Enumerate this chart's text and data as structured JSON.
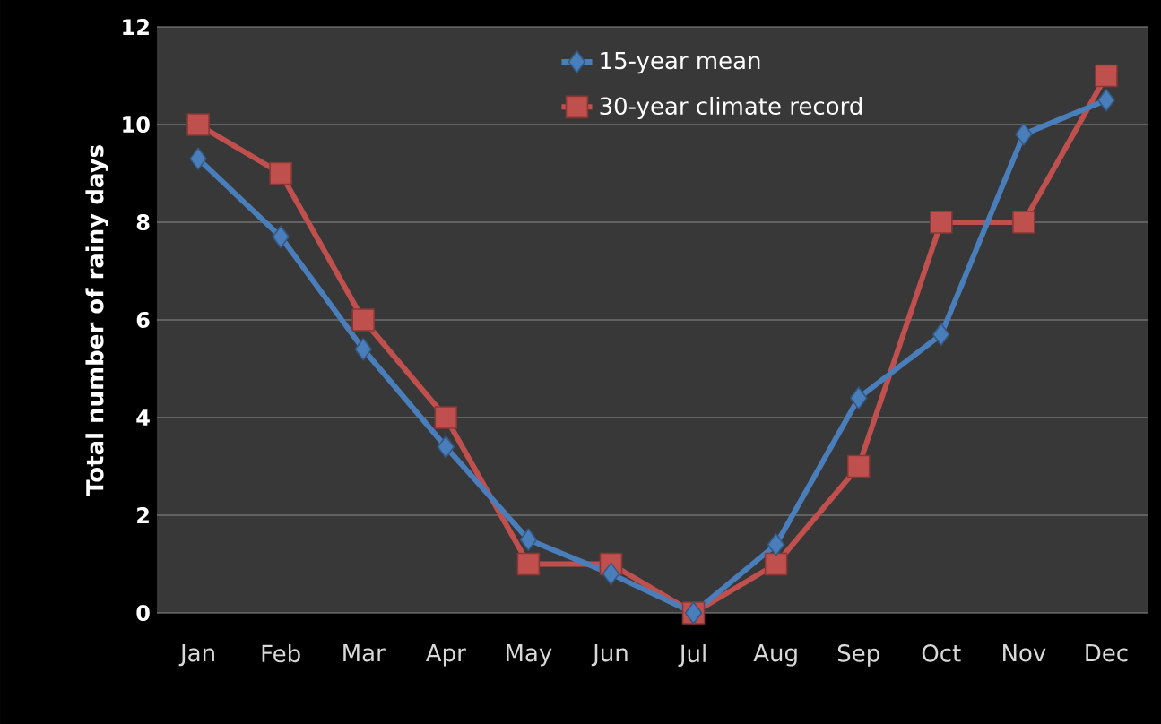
{
  "chart_data": {
    "type": "line",
    "ylabel": "Total number of rainy days",
    "categories": [
      "Jan",
      "Feb",
      "Mar",
      "Apr",
      "May",
      "Jun",
      "Jul",
      "Aug",
      "Sep",
      "Oct",
      "Nov",
      "Dec"
    ],
    "series": [
      {
        "name": "15-year mean",
        "color": "#4a7ebb",
        "marker": "diamond",
        "values": [
          9.3,
          7.7,
          5.4,
          3.4,
          1.5,
          0.8,
          0,
          1.4,
          4.4,
          5.7,
          9.8,
          10.5
        ]
      },
      {
        "name": "30-year climate record",
        "color": "#c0504d",
        "marker": "square",
        "values": [
          10,
          9,
          6,
          4,
          1,
          1,
          0,
          1,
          3,
          8,
          8,
          11
        ]
      }
    ],
    "ylim": [
      0,
      12
    ],
    "yticks": [
      0,
      2,
      4,
      6,
      8,
      10,
      12
    ],
    "grid": "y",
    "legend": "top",
    "line_style": "solid"
  }
}
